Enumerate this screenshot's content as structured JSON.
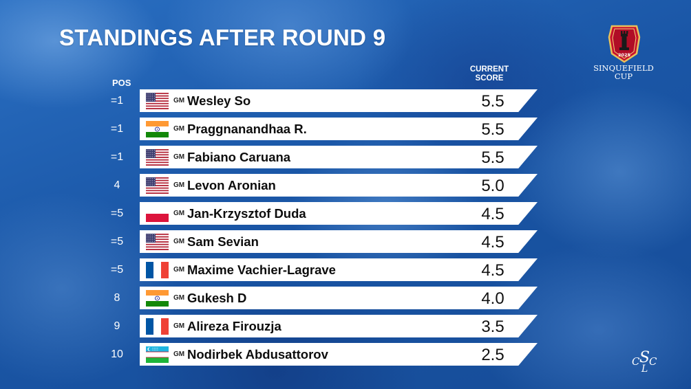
{
  "title": "STANDINGS AFTER ROUND 9",
  "headers": {
    "pos": "POS",
    "score_line1": "CURRENT",
    "score_line2": "SCORE"
  },
  "logo": {
    "year": "2025",
    "line1": "SINQUEFIELD",
    "line2": "CUP",
    "monogram": [
      "C",
      "S",
      "L",
      "C"
    ]
  },
  "standings": [
    {
      "pos": "=1",
      "flag": "usa",
      "title": "GM",
      "name": "Wesley So",
      "score": "5.5"
    },
    {
      "pos": "=1",
      "flag": "india",
      "title": "GM",
      "name": "Praggnanandhaa R.",
      "score": "5.5"
    },
    {
      "pos": "=1",
      "flag": "usa",
      "title": "GM",
      "name": "Fabiano Caruana",
      "score": "5.5"
    },
    {
      "pos": "4",
      "flag": "usa",
      "title": "GM",
      "name": "Levon Aronian",
      "score": "5.0"
    },
    {
      "pos": "=5",
      "flag": "poland",
      "title": "GM",
      "name": "Jan-Krzysztof Duda",
      "score": "4.5"
    },
    {
      "pos": "=5",
      "flag": "usa",
      "title": "GM",
      "name": "Sam Sevian",
      "score": "4.5"
    },
    {
      "pos": "=5",
      "flag": "france",
      "title": "GM",
      "name": "Maxime Vachier-Lagrave",
      "score": "4.5"
    },
    {
      "pos": "8",
      "flag": "india",
      "title": "GM",
      "name": "Gukesh D",
      "score": "4.0"
    },
    {
      "pos": "9",
      "flag": "france",
      "title": "GM",
      "name": "Alireza Firouzja",
      "score": "3.5"
    },
    {
      "pos": "10",
      "flag": "uzbekistan",
      "title": "GM",
      "name": "Nodirbek Abdusattorov",
      "score": "2.5"
    }
  ]
}
